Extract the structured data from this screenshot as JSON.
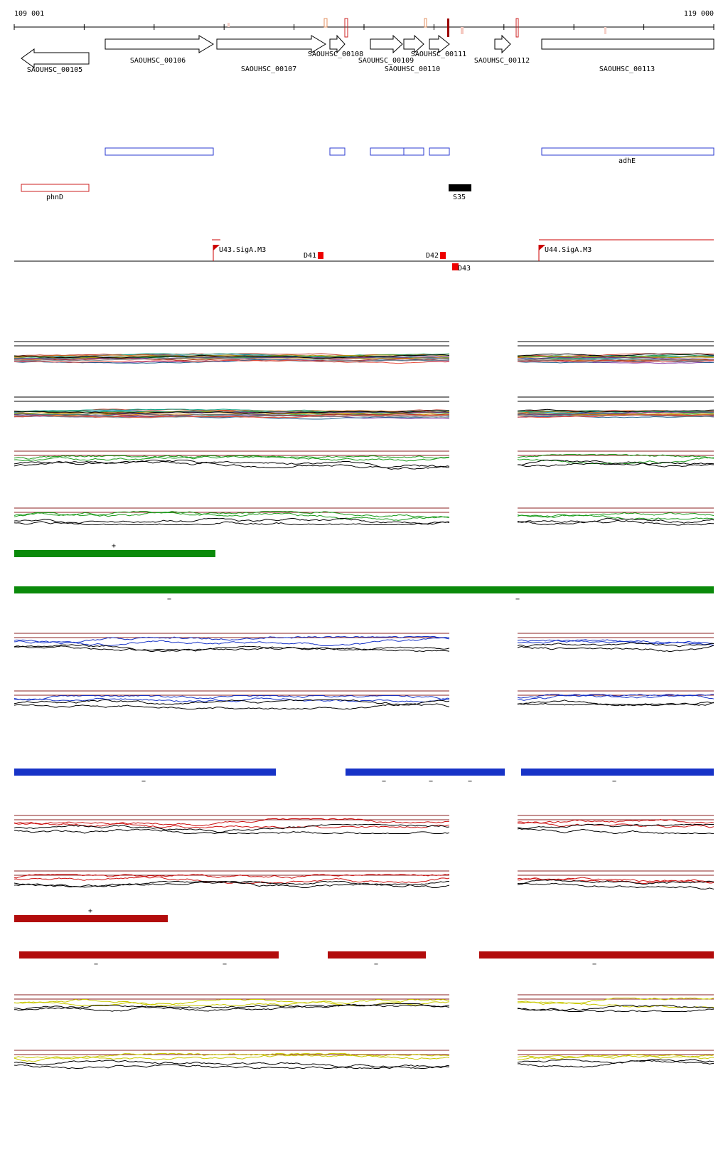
{
  "coordinates": {
    "start_label": "109 001",
    "end_label": "119 000"
  },
  "genes": [
    {
      "name": "SAOUHSC_00105",
      "strand": "-"
    },
    {
      "name": "SAOUHSC_00106",
      "strand": "+"
    },
    {
      "name": "SAOUHSC_00107",
      "strand": "+"
    },
    {
      "name": "SAOUHSC_00108",
      "strand": "+"
    },
    {
      "name": "SAOUHSC_00109",
      "strand": "+"
    },
    {
      "name": "SAOUHSC_00110",
      "strand": "+"
    },
    {
      "name": "SAOUHSC_00111",
      "strand": "+"
    },
    {
      "name": "SAOUHSC_00112",
      "strand": "+"
    },
    {
      "name": "SAOUHSC_00113",
      "strand": "+"
    }
  ],
  "annotations": {
    "blue_feature_label": "adhE",
    "red_feature_label": "phnD",
    "black_feature_label": "S35"
  },
  "regulatory_sites": {
    "upshifts": [
      "U43.SigA.M3",
      "U44.SigA.M3"
    ],
    "downshifts": [
      "D41",
      "D42",
      "D43"
    ]
  },
  "segment_marks": {
    "plus": "+",
    "minus": "−"
  },
  "colors": {
    "gene_outline": "#000000",
    "blue_feature": "#2b3bd1",
    "red_feature": "#cc2222",
    "green_bar": "#0a8a0a",
    "blue_bar": "#1733c7",
    "red_bar": "#b20c0c",
    "yellow_track": "#d6d600",
    "threshold_line": "#8b2020"
  }
}
